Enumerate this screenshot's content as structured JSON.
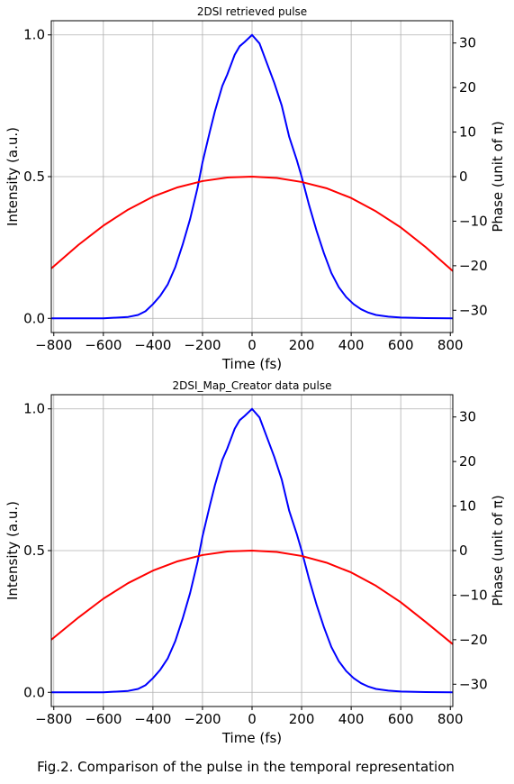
{
  "caption": "Fig.2. Comparison of the pulse in the temporal representation",
  "colors": {
    "intensity": "#0000ff",
    "phase": "#ff0000",
    "grid": "#b0b0b0"
  },
  "chart_data": [
    {
      "type": "line",
      "title": "2DSI retrieved pulse",
      "xlabel": "Time (fs)",
      "ylabel": "Intensity (a.u.)",
      "y2label": "Phase (unit of π)",
      "xlim": [
        -810,
        810
      ],
      "ylim": [
        -0.05,
        1.05
      ],
      "y2lim": [
        -35,
        35
      ],
      "xticks": [
        -800,
        -600,
        -400,
        -200,
        0,
        200,
        400,
        600,
        800
      ],
      "xtick_labels": [
        "−800",
        "−600",
        "−400",
        "−200",
        "0",
        "200",
        "400",
        "600",
        "800"
      ],
      "yticks": [
        0.0,
        0.5,
        1.0
      ],
      "ytick_labels": [
        "0.0",
        "0.5",
        "1.0"
      ],
      "y2ticks": [
        -30,
        -20,
        -10,
        0,
        10,
        20,
        30
      ],
      "y2tick_labels": [
        "−30",
        "−20",
        "−10",
        "0",
        "10",
        "20",
        "30"
      ],
      "grid": true,
      "series": [
        {
          "name": "Intensity",
          "axis": "left",
          "color": "#0000ff",
          "x": [
            -810,
            -600,
            -500,
            -460,
            -430,
            -400,
            -370,
            -340,
            -310,
            -280,
            -250,
            -220,
            -200,
            -170,
            -150,
            -120,
            -100,
            -70,
            -50,
            -30,
            0,
            30,
            60,
            90,
            120,
            150,
            180,
            200,
            230,
            260,
            290,
            320,
            350,
            380,
            410,
            440,
            470,
            500,
            550,
            600,
            700,
            810
          ],
          "y": [
            0.0,
            0.0,
            0.005,
            0.012,
            0.025,
            0.05,
            0.08,
            0.12,
            0.18,
            0.26,
            0.35,
            0.46,
            0.55,
            0.66,
            0.73,
            0.82,
            0.86,
            0.93,
            0.96,
            0.975,
            1.0,
            0.97,
            0.9,
            0.83,
            0.75,
            0.64,
            0.56,
            0.5,
            0.4,
            0.31,
            0.23,
            0.16,
            0.11,
            0.075,
            0.05,
            0.032,
            0.02,
            0.012,
            0.006,
            0.003,
            0.001,
            0.0
          ]
        },
        {
          "name": "Phase",
          "axis": "right",
          "color": "#ff0000",
          "x": [
            -810,
            -700,
            -600,
            -500,
            -400,
            -300,
            -200,
            -100,
            0,
            100,
            200,
            300,
            400,
            500,
            600,
            700,
            810
          ],
          "y": [
            -20.6,
            -15.3,
            -11.0,
            -7.4,
            -4.5,
            -2.4,
            -1.0,
            -0.2,
            0.0,
            -0.3,
            -1.2,
            -2.6,
            -4.8,
            -7.8,
            -11.4,
            -15.8,
            -21.2
          ]
        }
      ]
    },
    {
      "type": "line",
      "title": "2DSI_Map_Creator data pulse",
      "xlabel": "Time (fs)",
      "ylabel": "Intensity (a.u.)",
      "y2label": "Phase (unit of π)",
      "xlim": [
        -810,
        810
      ],
      "ylim": [
        -0.05,
        1.05
      ],
      "y2lim": [
        -35,
        35
      ],
      "xticks": [
        -800,
        -600,
        -400,
        -200,
        0,
        200,
        400,
        600,
        800
      ],
      "xtick_labels": [
        "−800",
        "−600",
        "−400",
        "−200",
        "0",
        "200",
        "400",
        "600",
        "800"
      ],
      "yticks": [
        0.0,
        0.5,
        1.0
      ],
      "ytick_labels": [
        "0.0",
        "0.5",
        "1.0"
      ],
      "y2ticks": [
        -30,
        -20,
        -10,
        0,
        10,
        20,
        30
      ],
      "y2tick_labels": [
        "−30",
        "−20",
        "−10",
        "0",
        "10",
        "20",
        "30"
      ],
      "grid": true,
      "series": [
        {
          "name": "Intensity",
          "axis": "left",
          "color": "#0000ff",
          "x": [
            -810,
            -600,
            -500,
            -460,
            -430,
            -400,
            -370,
            -340,
            -310,
            -280,
            -250,
            -220,
            -200,
            -170,
            -150,
            -120,
            -100,
            -70,
            -50,
            -30,
            0,
            30,
            60,
            90,
            120,
            150,
            180,
            200,
            230,
            260,
            290,
            320,
            350,
            380,
            410,
            440,
            470,
            500,
            550,
            600,
            700,
            810
          ],
          "y": [
            0.0,
            0.0,
            0.005,
            0.012,
            0.025,
            0.05,
            0.08,
            0.12,
            0.18,
            0.26,
            0.35,
            0.46,
            0.55,
            0.66,
            0.73,
            0.82,
            0.86,
            0.93,
            0.96,
            0.975,
            1.0,
            0.97,
            0.9,
            0.83,
            0.75,
            0.64,
            0.56,
            0.5,
            0.4,
            0.31,
            0.23,
            0.16,
            0.11,
            0.075,
            0.05,
            0.032,
            0.02,
            0.012,
            0.006,
            0.003,
            0.001,
            0.0
          ]
        },
        {
          "name": "Phase",
          "axis": "right",
          "color": "#ff0000",
          "x": [
            -810,
            -700,
            -600,
            -500,
            -400,
            -300,
            -200,
            -100,
            0,
            100,
            200,
            300,
            400,
            500,
            600,
            700,
            810
          ],
          "y": [
            -20.0,
            -15.0,
            -10.8,
            -7.3,
            -4.5,
            -2.4,
            -1.0,
            -0.2,
            0.0,
            -0.3,
            -1.2,
            -2.7,
            -4.9,
            -7.9,
            -11.6,
            -16.0,
            -21.0
          ]
        }
      ]
    }
  ]
}
